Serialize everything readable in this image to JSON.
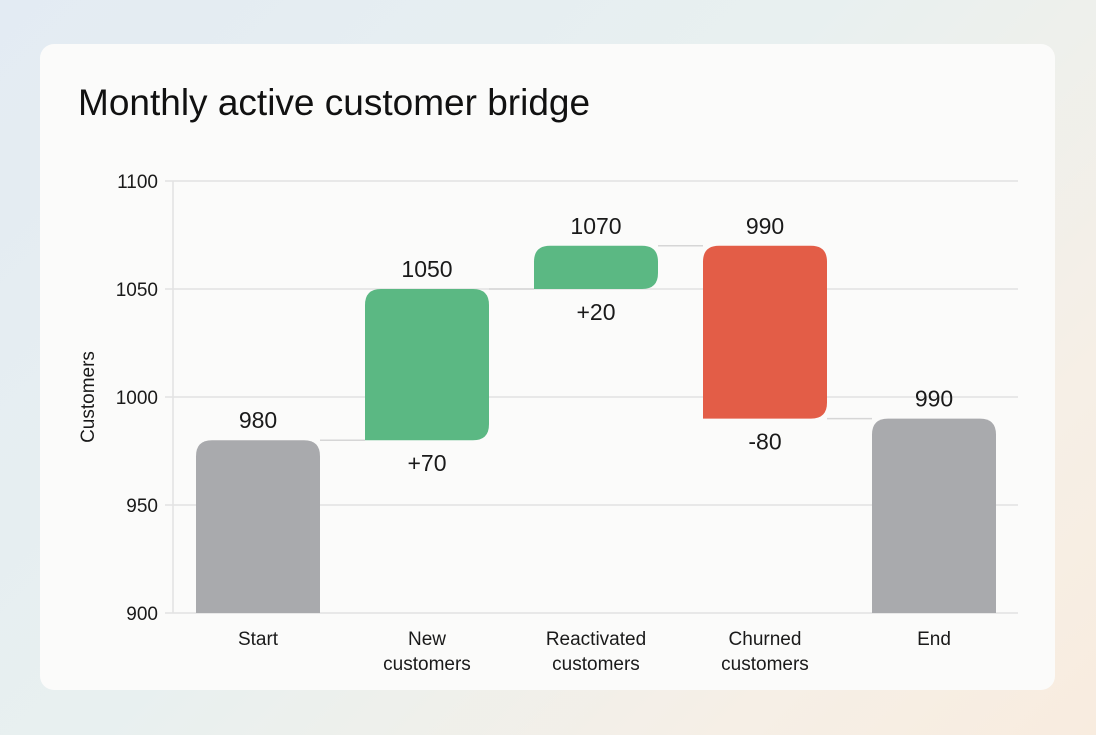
{
  "chart_data": {
    "type": "waterfall",
    "title": "Monthly active customer bridge",
    "xlabel": "",
    "ylabel": "Customers",
    "ylim": [
      900,
      1100
    ],
    "yticks": [
      900,
      950,
      1000,
      1050,
      1100
    ],
    "grid": true,
    "categories": [
      [
        "Start"
      ],
      [
        "New",
        "customers"
      ],
      [
        "Reactivated",
        "customers"
      ],
      [
        "Churned",
        "customers"
      ],
      [
        "End"
      ]
    ],
    "steps": [
      {
        "kind": "total",
        "start": 900,
        "end": 980,
        "top_label": "980",
        "delta_label": ""
      },
      {
        "kind": "increase",
        "start": 980,
        "end": 1050,
        "top_label": "1050",
        "delta_label": "+70"
      },
      {
        "kind": "increase",
        "start": 1050,
        "end": 1070,
        "top_label": "1070",
        "delta_label": "+20"
      },
      {
        "kind": "decrease",
        "start": 1070,
        "end": 990,
        "top_label": "990",
        "delta_label": "-80"
      },
      {
        "kind": "total",
        "start": 900,
        "end": 990,
        "top_label": "990",
        "delta_label": ""
      }
    ],
    "colors": {
      "total": "#a9aaad",
      "increase": "#5bb883",
      "decrease": "#e35d47",
      "grid": "#e2e2e2",
      "connector": "#d6d6d6"
    }
  }
}
